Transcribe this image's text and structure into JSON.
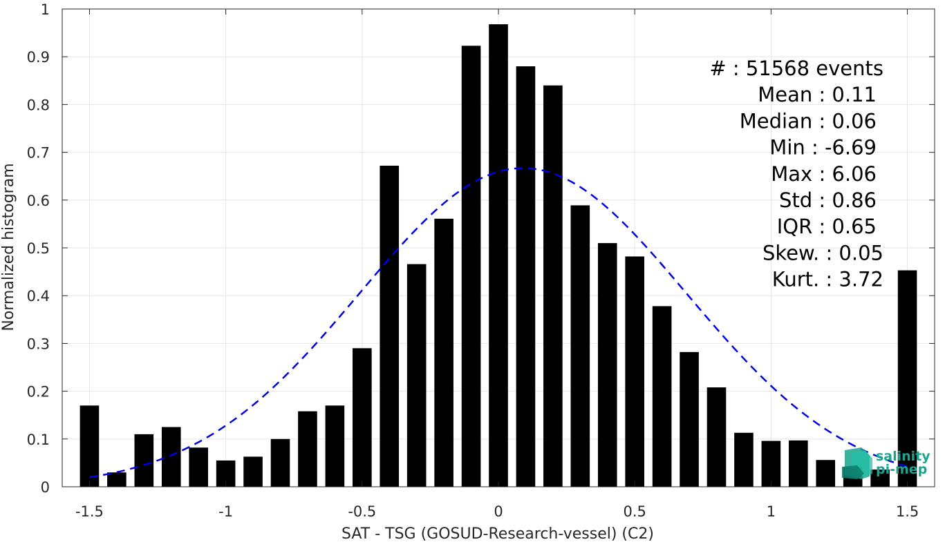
{
  "chart_data": {
    "type": "bar",
    "xlabel": "SAT - TSG (GOSUD-Research-vessel) (C2)",
    "ylabel": "Normalized histogram",
    "xlim": [
      -1.6,
      1.6
    ],
    "ylim": [
      0,
      1
    ],
    "grid": true,
    "bar_width": 0.07,
    "x_ticks": [
      "-1.5",
      "-1",
      "-0.5",
      "0",
      "0.5",
      "1",
      "1.5"
    ],
    "x_tick_values": [
      -1.5,
      -1,
      -0.5,
      0,
      0.5,
      1,
      1.5
    ],
    "y_ticks": [
      "0",
      "0.1",
      "0.2",
      "0.3",
      "0.4",
      "0.5",
      "0.6",
      "0.7",
      "0.8",
      "0.9",
      "1"
    ],
    "y_tick_values": [
      0,
      0.1,
      0.2,
      0.3,
      0.4,
      0.5,
      0.6,
      0.7,
      0.8,
      0.9,
      1
    ],
    "x": [
      -1.5,
      -1.4,
      -1.3,
      -1.2,
      -1.1,
      -1.0,
      -0.9,
      -0.8,
      -0.7,
      -0.6,
      -0.5,
      -0.4,
      -0.3,
      -0.2,
      -0.1,
      0.0,
      0.1,
      0.2,
      0.3,
      0.4,
      0.5,
      0.6,
      0.7,
      0.8,
      0.9,
      1.0,
      1.1,
      1.2,
      1.3,
      1.4,
      1.5
    ],
    "values": [
      0.17,
      0.03,
      0.11,
      0.125,
      0.082,
      0.055,
      0.063,
      0.1,
      0.158,
      0.17,
      0.29,
      0.672,
      0.466,
      0.561,
      0.923,
      0.968,
      0.88,
      0.84,
      0.589,
      0.51,
      0.482,
      0.378,
      0.282,
      0.208,
      0.113,
      0.096,
      0.097,
      0.056,
      0.041,
      0.036,
      0.453
    ],
    "bar_color": "#000000",
    "fit": {
      "style": "dashed",
      "color": "#0000e6",
      "mean": 0.09,
      "std": 0.6,
      "peak": 0.667,
      "x_range": [
        -1.5,
        1.5
      ]
    },
    "stats": [
      {
        "label": "#  : 51568 events"
      },
      {
        "label": "Mean : 0.11"
      },
      {
        "label": "Median : 0.06"
      },
      {
        "label": "Min : -6.69"
      },
      {
        "label": "Max : 6.06"
      },
      {
        "label": "Std : 0.86"
      },
      {
        "label": "IQR : 0.65"
      },
      {
        "label": "Skew. : 0.05"
      },
      {
        "label": "Kurt. : 3.72"
      }
    ]
  },
  "logo": {
    "line1": "salinity",
    "line2": "pi-mep",
    "color": "#1aa38f",
    "icon": "salinity-pimep-logo-icon"
  }
}
